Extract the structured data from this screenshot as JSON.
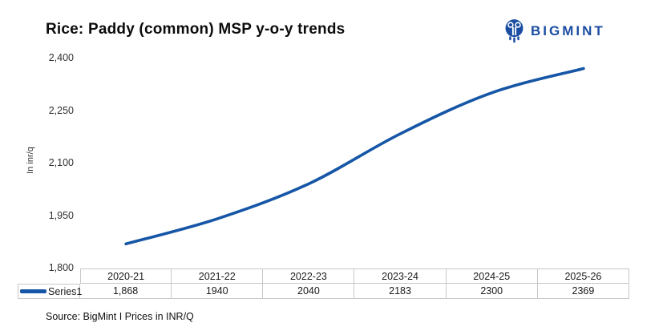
{
  "header": {
    "logo_text": "BIGMINT"
  },
  "source_note": "Source: BigMint I Prices in INR/Q",
  "colors": {
    "line": "#1656a6",
    "logo": "#1b4da2",
    "table_border": "#c8c8c8"
  },
  "chart_data": {
    "type": "line",
    "title": "Rice: Paddy (common) MSP y-o-y trends",
    "categories": [
      "2020-21",
      "2021-22",
      "2022-23",
      "2023-24",
      "2024-25",
      "2025-26"
    ],
    "series": [
      {
        "name": "Series1",
        "values": [
          1868,
          1940,
          2040,
          2183,
          2300,
          2369
        ],
        "display_values": [
          "1,868",
          "1940",
          "2040",
          "2183",
          "2300",
          "2369"
        ]
      }
    ],
    "xlabel": "",
    "ylabel": "In inr/q",
    "ylim": [
      1800,
      2400
    ],
    "yticks": [
      1800,
      1950,
      2100,
      2250,
      2400
    ],
    "ytick_labels": [
      "1,800",
      "1,950",
      "2,100",
      "2,250",
      "2,400"
    ],
    "grid": false,
    "line_smooth": true,
    "legend_position": "data-table-left"
  }
}
